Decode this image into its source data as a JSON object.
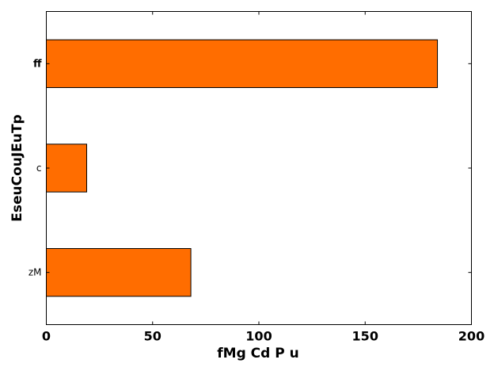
{
  "chart_data": {
    "type": "bar",
    "orientation": "horizontal",
    "categories": [
      "zM",
      "c",
      "ff"
    ],
    "values": [
      68,
      19,
      184
    ],
    "bold_categories": [
      "ff"
    ],
    "xlabel": "fMg Cd P u",
    "ylabel": "EseuCouJEuTp",
    "xlim": [
      0,
      200
    ],
    "xticks": [
      0,
      50,
      100,
      150,
      200
    ],
    "grid": false,
    "bar_color": "#ff6d00",
    "edge_color": "#000000"
  }
}
